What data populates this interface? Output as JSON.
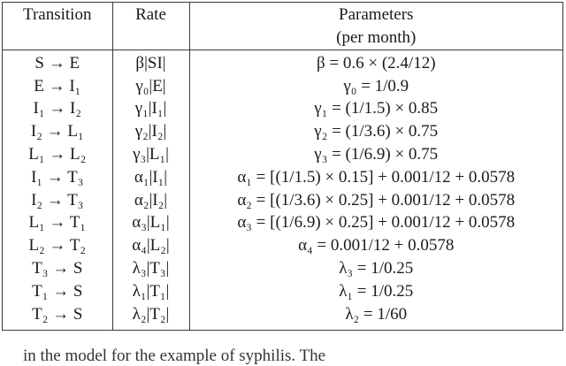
{
  "table": {
    "headers": {
      "transition": "Transition",
      "rate": "Rate",
      "parameters_line1": "Parameters",
      "parameters_line2": "(per month)"
    },
    "rows": [
      {
        "transition": "S → E",
        "rate": "β|SI|",
        "parameter": "β = 0.6 × (2.4/12)"
      },
      {
        "transition": "E → I₁",
        "rate": "γ₀|E|",
        "parameter": "γ₀ = 1/0.9"
      },
      {
        "transition": "I₁ → I₂",
        "rate": "γ₁|I₁|",
        "parameter": "γ₁ = (1/1.5) × 0.85"
      },
      {
        "transition": "I₂ → L₁",
        "rate": "γ₂|I₂|",
        "parameter": "γ₂ = (1/3.6) × 0.75"
      },
      {
        "transition": "L₁ → L₂",
        "rate": "γ₃|L₁|",
        "parameter": "γ₃ = (1/6.9) × 0.75"
      },
      {
        "transition": "I₁ → T₃",
        "rate": "α₁|I₁|",
        "parameter": "α₁ = [(1/1.5) × 0.15] + 0.001/12 + 0.0578"
      },
      {
        "transition": "I₂ → T₃",
        "rate": "α₂|I₂|",
        "parameter": "α₂ = [(1/3.6) × 0.25] + 0.001/12 + 0.0578"
      },
      {
        "transition": "L₁ → T₁",
        "rate": "α₃|L₁|",
        "parameter": "α₃ = [(1/6.9) × 0.25] + 0.001/12 + 0.0578"
      },
      {
        "transition": "L₂ → T₂",
        "rate": "α₄|L₂|",
        "parameter": "α₄ = 0.001/12 + 0.0578"
      },
      {
        "transition": "T₃ → S",
        "rate": "λ₃|T₃|",
        "parameter": "λ₃ = 1/0.25"
      },
      {
        "transition": "T₁ → S",
        "rate": "λ₁|T₁|",
        "parameter": "λ₁ = 1/0.25"
      },
      {
        "transition": "T₂ → S",
        "rate": "λ₂|T₂|",
        "parameter": "λ₂ = 1/60"
      }
    ]
  },
  "caption_partial": "in the model for the example of syphilis. The"
}
